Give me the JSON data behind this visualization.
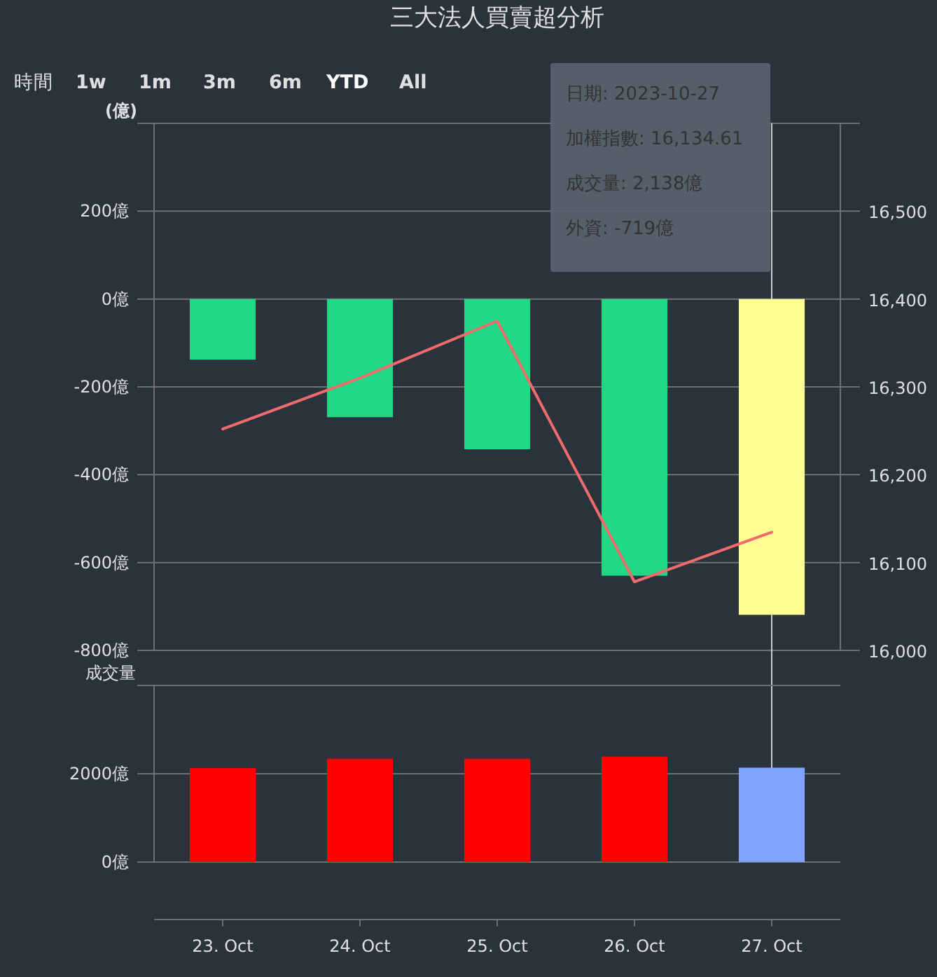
{
  "chart_data": [
    {
      "type": "bar",
      "title": "三大法人買賣超分析",
      "ylabel": "(億)",
      "tick_labels": "y",
      "grid": "y",
      "annotations": [
        "時間",
        "1w",
        "1m",
        "3m",
        "6m",
        "YTD",
        "All",
        "日期: 2023-10-27",
        "加權指數: 16,134.61",
        "成交量: 2,138億",
        "外資: -719億"
      ],
      "categories": [
        "23. Oct",
        "24. Oct",
        "25. Oct",
        "26. Oct",
        "27. Oct"
      ],
      "ref_lines": [
        {
          "axis": "x",
          "value": "27. Oct",
          "color": "#cccccc"
        }
      ],
      "ylim": [
        -800,
        400
      ],
      "yticks": [
        {
          "value": -800,
          "label": "-800億"
        },
        {
          "value": -600,
          "label": "-600億"
        },
        {
          "value": -400,
          "label": "-400億"
        },
        {
          "value": -200,
          "label": "-200億"
        },
        {
          "value": 0,
          "label": "0億"
        },
        {
          "value": 200,
          "label": "200億"
        },
        {
          "value": 400,
          "label": null
        }
      ],
      "y2lim": [
        16000,
        16600
      ],
      "y2ticks": [
        {
          "value": 16000,
          "label": "16,000"
        },
        {
          "value": 16100,
          "label": "16,100"
        },
        {
          "value": 16200,
          "label": "16,200"
        },
        {
          "value": 16300,
          "label": "16,300"
        },
        {
          "value": 16400,
          "label": "16,400"
        },
        {
          "value": 16500,
          "label": "16,500"
        }
      ],
      "series": [
        {
          "type": "bar",
          "colors": [
            "#20d886",
            "#20d886",
            "#20d886",
            "#20d886",
            "#fffd91"
          ],
          "values": [
            -138,
            -269,
            -342,
            -630,
            -719
          ]
        },
        {
          "type": "line",
          "axis": "y2",
          "color": "#f06b6b",
          "values": [
            16252,
            16310,
            16375,
            16078,
            16134.61
          ]
        }
      ]
    },
    {
      "type": "bar",
      "ylabel": "成交量",
      "grid": "y",
      "categories": [
        "23. Oct",
        "24. Oct",
        "25. Oct",
        "26. Oct",
        "27. Oct"
      ],
      "ylim": [
        0,
        4000
      ],
      "yticks": [
        {
          "value": 0,
          "label": "0億"
        },
        {
          "value": 2000,
          "label": "2000億"
        },
        {
          "value": 4000,
          "label": null
        }
      ],
      "colors": [
        "#ff0000",
        "#ff0000",
        "#ff0000",
        "#ff0000",
        "#80a4ff"
      ],
      "values": [
        2130,
        2340,
        2340,
        2390,
        2138
      ]
    }
  ]
}
